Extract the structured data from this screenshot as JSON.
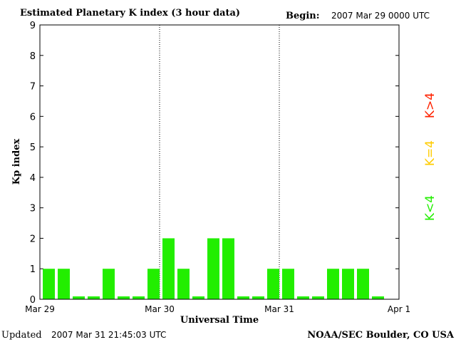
{
  "header": {
    "title": "Estimated Planetary K index (3 hour data)",
    "begin_label": "Begin:",
    "begin_value": "2007 Mar 29 0000 UTC"
  },
  "footer": {
    "updated_label": "Updated",
    "updated_value": "2007 Mar 31 21:45:03 UTC",
    "credit": "NOAA/SEC Boulder, CO USA"
  },
  "legend": {
    "high": {
      "label": "K>4",
      "color": "#ff2200"
    },
    "mid": {
      "label": "K=4",
      "color": "#ffcc00"
    },
    "low": {
      "label": "K<4",
      "color": "#22ee00"
    }
  },
  "chart_data": {
    "type": "bar",
    "ylabel": "Kp index",
    "xlabel": "Universal Time",
    "ylim": [
      0,
      9
    ],
    "yticks": [
      0,
      1,
      2,
      3,
      4,
      5,
      6,
      7,
      8,
      9
    ],
    "xticks": [
      "Mar 29",
      "Mar 30",
      "Mar 31",
      "Apr 1"
    ],
    "grid": false,
    "day_dividers": true,
    "bar_color": "#22ee00",
    "values": [
      1,
      1,
      0,
      0,
      1,
      0,
      0,
      1,
      2,
      1,
      0,
      2,
      2,
      0,
      0,
      1,
      1,
      0,
      0,
      1,
      1,
      1,
      0
    ]
  }
}
